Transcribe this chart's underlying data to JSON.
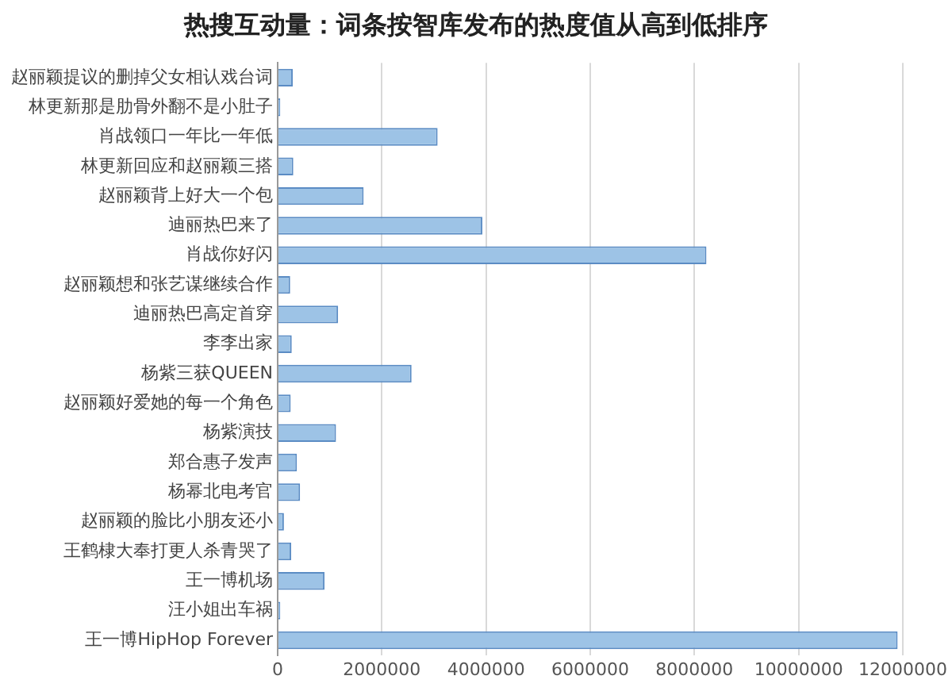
{
  "chart_data": {
    "type": "bar",
    "orientation": "horizontal",
    "title": "热搜互动量：词条按智库发布的热度值从高到低排序",
    "categories": [
      "赵丽颖提议的删掉父女相认戏台词",
      "林更新那是肋骨外翻不是小肚子",
      "肖战领口一年比一年低",
      "林更新回应和赵丽颖三搭",
      "赵丽颖背上好大一个包",
      "迪丽热巴来了",
      "肖战你好闪",
      "赵丽颖想和张艺谋继续合作",
      "迪丽热巴高定首穿",
      "李李出家",
      "杨紫三获QUEEN",
      "赵丽颖好爱她的每一个角色",
      "杨紫演技",
      "郑合惠子发声",
      "杨幂北电考官",
      "赵丽颖的脸比小朋友还小",
      "王鹤棣大奉打更人杀青哭了",
      "王一博机场",
      "汪小姐出车祸",
      "王一博HipHop Forever"
    ],
    "values": [
      290000,
      50000,
      3070000,
      300000,
      1650000,
      3930000,
      8230000,
      240000,
      1160000,
      270000,
      2570000,
      250000,
      1120000,
      370000,
      430000,
      120000,
      260000,
      900000,
      50000,
      11900000
    ],
    "color": "#9dc3e6",
    "xlim": [
      0,
      12000000
    ],
    "xticks": [
      0,
      2000000,
      4000000,
      6000000,
      8000000,
      10000000,
      12000000
    ],
    "grid": "x"
  }
}
